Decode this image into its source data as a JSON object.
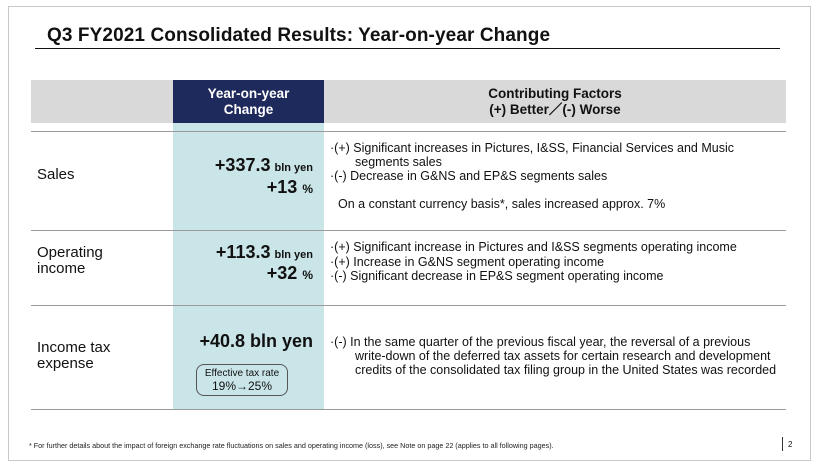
{
  "title": "Q3 FY2021  Consolidated Results: Year-on-year Change",
  "header": {
    "yoy_line1": "Year-on-year",
    "yoy_line2": "Change",
    "factors_line1": "Contributing Factors",
    "factors_line2": "(+) Better／(-) Worse"
  },
  "rows": {
    "sales": {
      "label": "Sales",
      "amount": "+337.3",
      "amount_unit": "bln yen",
      "pct": "+13",
      "pct_unit": "%",
      "factors": [
        {
          "line1": "·(+) Significant increases in Pictures, I&SS, Financial Services and Music",
          "line2": "segments sales"
        },
        {
          "line1": "·(-)  Decrease in G&NS and EP&S segments sales"
        }
      ],
      "note": "On a constant currency basis*, sales increased approx. 7%"
    },
    "operating_income": {
      "label_line1": "Operating",
      "label_line2": "income",
      "amount": "+113.3",
      "amount_unit": "bln yen",
      "pct": "+32",
      "pct_unit": "%",
      "factors": [
        "·(+) Significant increase in Pictures and I&SS segments operating income",
        "·(+) Increase in G&NS segment operating income",
        "·(-)  Significant decrease in EP&S segment operating income"
      ]
    },
    "income_tax": {
      "label_line1": "Income tax",
      "label_line2": "expense",
      "amount": "+40.8 bln yen",
      "tax_box_label": "Effective tax rate",
      "tax_box_value": "19%→25%",
      "factor_line1": "·(-) In the same quarter of the previous fiscal year, the reversal of a previous",
      "factor_line2": "write-down of the deferred tax assets for certain research and development",
      "factor_line3": "credits of the consolidated tax filing group in the United States was recorded"
    }
  },
  "footnote": "* For further details about the impact of foreign exchange rate fluctuations on sales and operating income (loss), see Note on page 22 (applies to all following pages).",
  "page_number": "2",
  "colors": {
    "header_navy": "#1f2a5c",
    "header_gray": "#d9d9d9",
    "yoy_column": "#c9e5e8"
  }
}
